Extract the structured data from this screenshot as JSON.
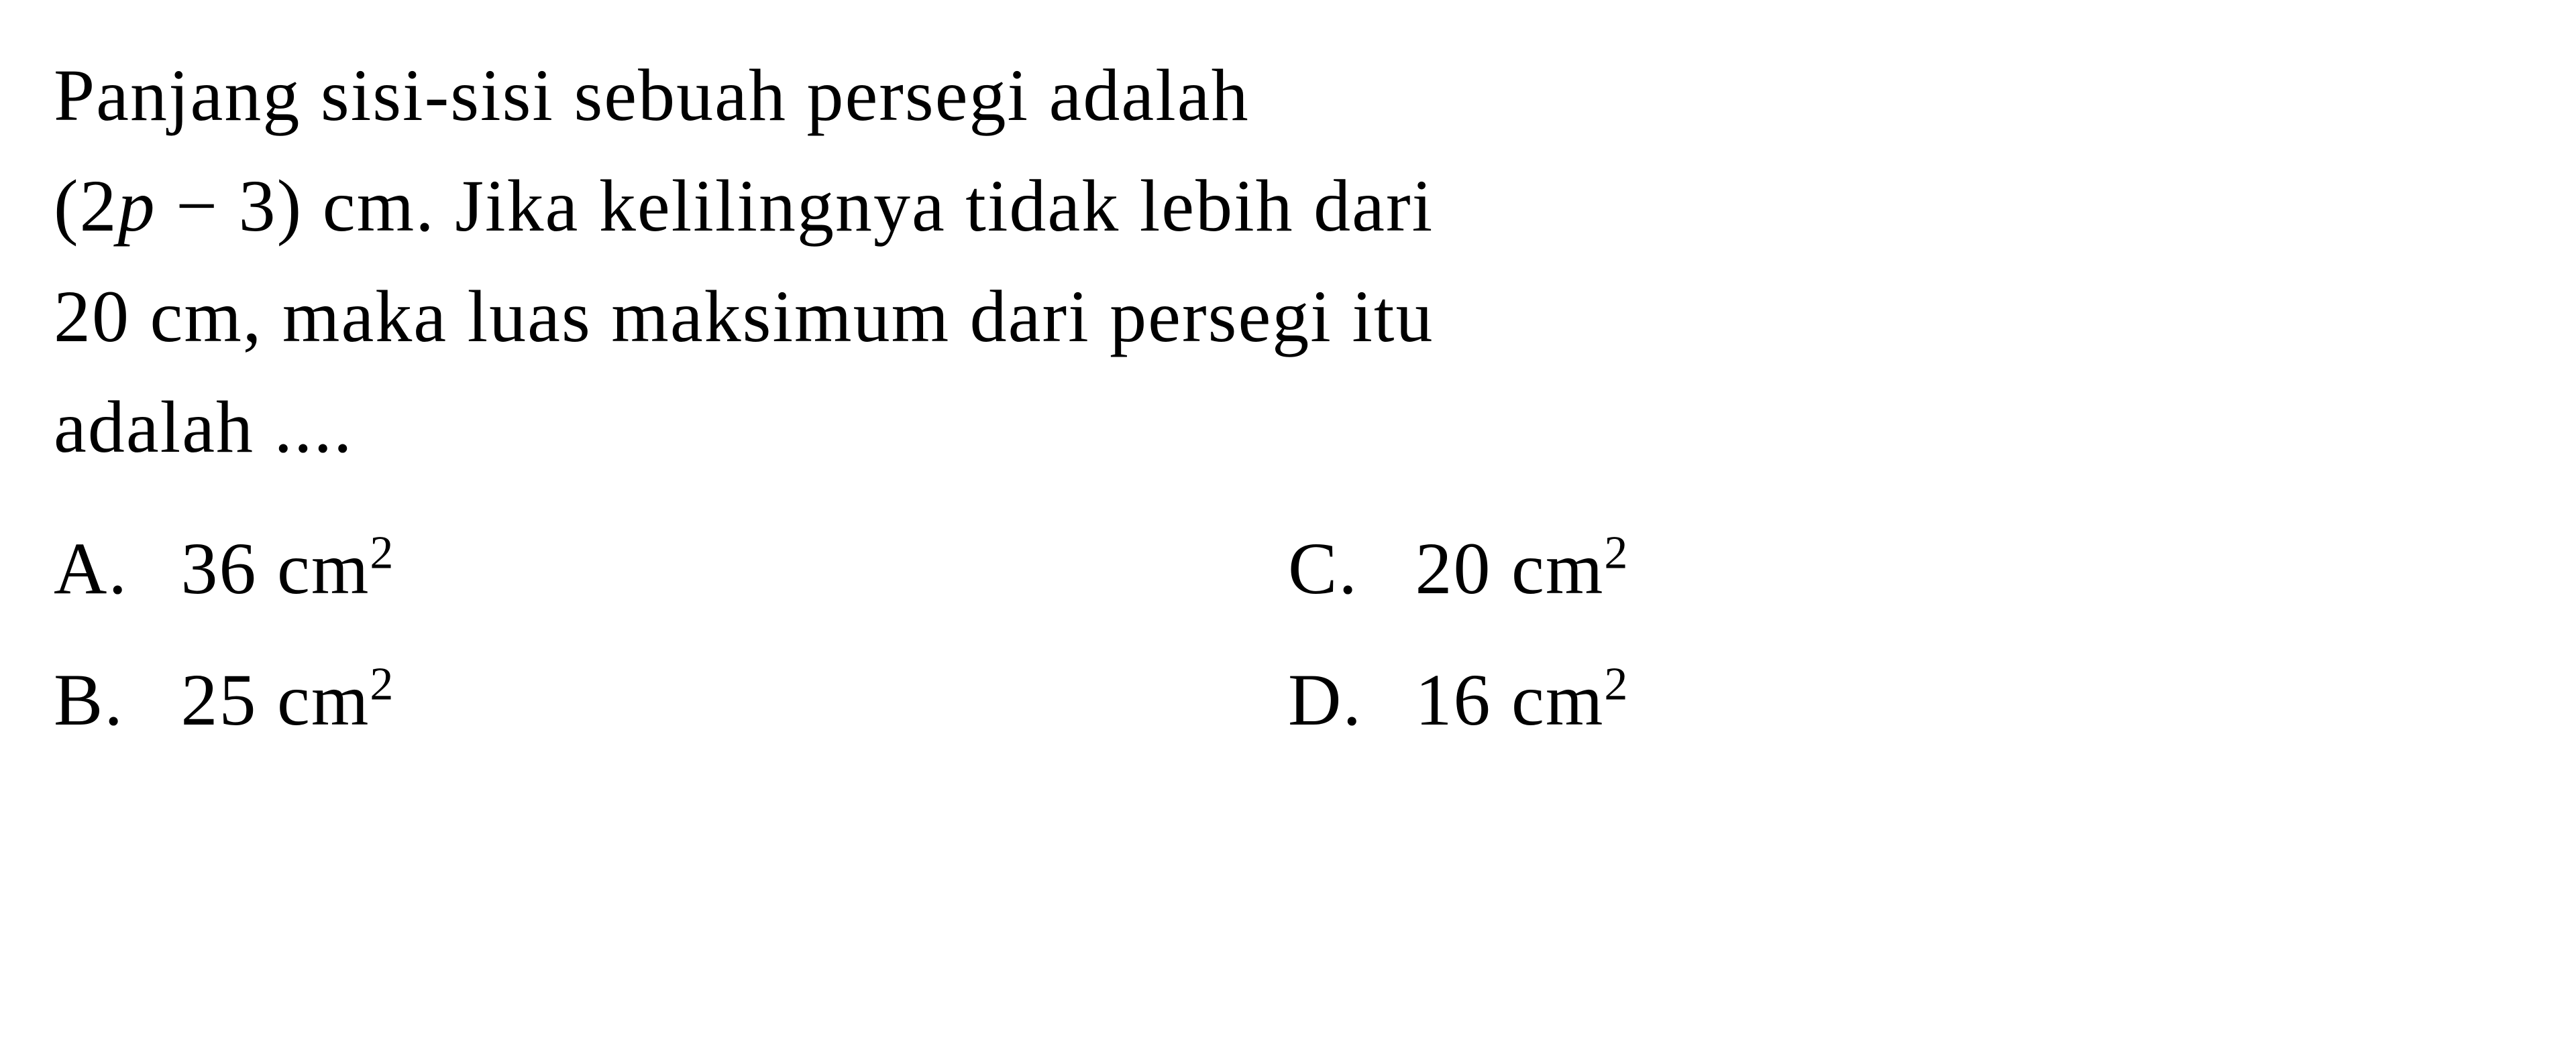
{
  "question": {
    "line1": "Panjang sisi-sisi sebuah persegi adalah",
    "line2_pre": "(2",
    "line2_var": "p",
    "line2_post": " − 3) cm. Jika kelilingnya tidak lebih dari",
    "line3": "20 cm, maka luas maksimum dari persegi itu",
    "line4": "adalah ...."
  },
  "options": {
    "a": {
      "label": "A.",
      "value": "36 cm",
      "sup": "2"
    },
    "b": {
      "label": "B.",
      "value": "25 cm",
      "sup": "2"
    },
    "c": {
      "label": "C.",
      "value": "20 cm",
      "sup": "2"
    },
    "d": {
      "label": "D.",
      "value": "16 cm",
      "sup": "2"
    }
  },
  "styling": {
    "font_family": "Times New Roman",
    "font_size_pt": 110,
    "text_color": "#000000",
    "background_color": "#ffffff"
  }
}
